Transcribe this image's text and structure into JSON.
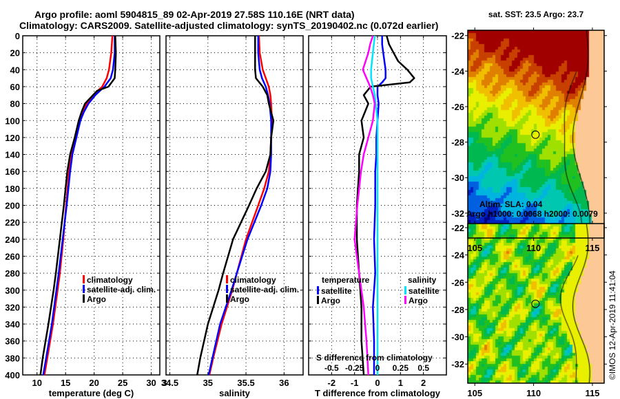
{
  "title_line1": "Argo profile: aoml 5904815_89 02-Apr-2019 27.58S 110.16E (NRT data)",
  "title_line2": "Climatology: CARS2009. Satellite-adjusted climatology: synTS_20190402.nc (0.072d earlier)",
  "colors": {
    "climatology": "#ff0000",
    "satellite": "#0000ff",
    "argo": "#000000",
    "salinity_satellite": "#00e5ff",
    "salinity_argo": "#ff00ff",
    "land": "#fcc896"
  },
  "chart_data": [
    {
      "type": "line",
      "name": "temperature-profile",
      "xlabel": "temperature (deg C)",
      "ylabel": "",
      "xlim": [
        7.5,
        31.5
      ],
      "ylim": [
        400,
        0
      ],
      "xticks": [
        10,
        15,
        20,
        25,
        30
      ],
      "yticks": [
        0,
        20,
        40,
        60,
        80,
        100,
        120,
        140,
        160,
        180,
        200,
        220,
        240,
        260,
        280,
        300,
        320,
        340,
        360,
        380,
        400
      ],
      "grid": true,
      "legend": [
        "climatology",
        "satellite-adj. clim.",
        "Argo"
      ],
      "legend_position": "center-right",
      "depth": [
        0,
        20,
        40,
        50,
        60,
        65,
        70,
        80,
        90,
        100,
        120,
        140,
        160,
        200,
        240,
        280,
        300,
        340,
        380,
        400
      ],
      "series": [
        {
          "name": "climatology",
          "values": [
            23.2,
            23.0,
            22.6,
            22.2,
            21.4,
            20.6,
            19.8,
            18.7,
            18.0,
            17.5,
            16.8,
            16.0,
            15.6,
            15.1,
            14.6,
            14.0,
            13.6,
            12.8,
            11.8,
            11.3
          ]
        },
        {
          "name": "satellite-adj. clim.",
          "values": [
            23.6,
            23.6,
            23.3,
            22.9,
            21.8,
            21.0,
            20.2,
            19.0,
            18.2,
            17.6,
            16.9,
            16.2,
            15.8,
            15.2,
            14.5,
            13.8,
            13.4,
            12.6,
            11.6,
            11.1
          ]
        },
        {
          "name": "Argo",
          "values": [
            23.7,
            23.8,
            23.7,
            23.6,
            22.5,
            20.5,
            19.8,
            18.4,
            17.8,
            17.3,
            16.6,
            15.8,
            15.3,
            14.7,
            14.0,
            13.3,
            12.9,
            12.0,
            11.0,
            10.6
          ]
        }
      ]
    },
    {
      "type": "line",
      "name": "salinity-profile",
      "xlabel": "salinity",
      "ylabel": "",
      "xlim": [
        34.45,
        36.25
      ],
      "ylim": [
        400,
        0
      ],
      "xticks": [
        34.5,
        35,
        35.5,
        36
      ],
      "grid": true,
      "legend": [
        "climatology",
        "satellite-adj. clim.",
        "Argo"
      ],
      "legend_position": "center-right",
      "depth": [
        0,
        20,
        40,
        50,
        60,
        70,
        80,
        100,
        120,
        140,
        160,
        180,
        200,
        240,
        280,
        300,
        340,
        380,
        400
      ],
      "series": [
        {
          "name": "climatology",
          "values": [
            35.67,
            35.68,
            35.72,
            35.76,
            35.8,
            35.82,
            35.83,
            35.84,
            35.83,
            35.82,
            35.8,
            35.74,
            35.66,
            35.5,
            35.38,
            35.32,
            35.18,
            35.07,
            35.02
          ]
        },
        {
          "name": "satellite-adj. clim.",
          "values": [
            35.66,
            35.66,
            35.68,
            35.71,
            35.76,
            35.79,
            35.81,
            35.83,
            35.83,
            35.83,
            35.82,
            35.78,
            35.7,
            35.52,
            35.38,
            35.31,
            35.16,
            35.06,
            35.01
          ]
        },
        {
          "name": "Argo",
          "values": [
            35.62,
            35.62,
            35.62,
            35.63,
            35.72,
            35.78,
            35.8,
            35.86,
            35.83,
            35.82,
            35.76,
            35.64,
            35.54,
            35.33,
            35.2,
            35.14,
            35.0,
            34.9,
            34.86
          ]
        }
      ]
    },
    {
      "type": "line",
      "name": "difference-from-climatology",
      "xlabel": "T difference from climatology",
      "x2label": "S difference from climatology",
      "xlim": [
        -3,
        3
      ],
      "x2lim": [
        -0.75,
        0.75
      ],
      "ylim": [
        400,
        0
      ],
      "xticks": [
        -2,
        -1,
        0,
        1,
        2
      ],
      "x2ticks": [
        -0.5,
        -0.25,
        0,
        0.25,
        0.5
      ],
      "grid": true,
      "legend_temperature_title": "temperature",
      "legend_salinity_title": "salinity",
      "legend": [
        "satellite",
        "Argo",
        "satellite",
        "Argo"
      ],
      "depth": [
        0,
        10,
        20,
        30,
        40,
        50,
        55,
        60,
        70,
        80,
        100,
        120,
        140,
        160,
        200,
        240,
        280,
        320,
        360,
        400
      ],
      "series": [
        {
          "name": "temperature satellite",
          "axis": "T",
          "values": [
            0.2,
            0.2,
            0.25,
            0.3,
            0.35,
            0.35,
            0.2,
            0.0,
            0.0,
            0.05,
            0.0,
            -0.05,
            -0.05,
            -0.1,
            -0.1,
            -0.15,
            -0.1,
            -0.2,
            -0.15,
            -0.15
          ]
        },
        {
          "name": "temperature Argo",
          "axis": "T",
          "values": [
            0.4,
            0.5,
            0.7,
            0.9,
            1.3,
            1.6,
            1.4,
            -0.3,
            -0.6,
            -0.4,
            -0.7,
            -0.6,
            -0.8,
            -0.8,
            -0.9,
            -0.9,
            -0.8,
            -0.7,
            -0.7,
            -0.6
          ]
        },
        {
          "name": "salinity satellite",
          "axis": "S",
          "values": [
            -0.03,
            -0.04,
            -0.05,
            -0.06,
            -0.07,
            -0.07,
            -0.06,
            -0.05,
            -0.03,
            -0.02,
            0.0,
            0.0,
            0.0,
            0.0,
            0.0,
            0.0,
            0.0,
            0.0,
            0.0,
            0.0
          ]
        },
        {
          "name": "salinity Argo",
          "axis": "S",
          "values": [
            -0.05,
            -0.08,
            -0.1,
            -0.13,
            -0.16,
            -0.12,
            -0.1,
            -0.08,
            -0.05,
            -0.03,
            -0.05,
            -0.1,
            -0.15,
            -0.18,
            -0.22,
            -0.25,
            -0.2,
            -0.15,
            -0.12,
            -0.1
          ]
        }
      ]
    }
  ],
  "maps": [
    {
      "name": "sst-map",
      "title": "sat. SST: 23.5 Argo: 23.7",
      "xticks": [
        105,
        110,
        115
      ],
      "yticks": [
        -22,
        -24,
        -26,
        -28,
        -30,
        -32
      ],
      "float_position": [
        110.16,
        -27.58
      ]
    },
    {
      "name": "sla-map",
      "title_line1": "Altim. SLA: 0.04",
      "title_line2": "Argo h1000: 0.0068 h2000: 0.0079",
      "xticks": [
        105,
        110,
        115
      ],
      "yticks": [
        -22,
        -24,
        -26,
        -28,
        -30,
        -32
      ],
      "float_position": [
        110.16,
        -27.58
      ]
    }
  ],
  "credit": "©IMOS 12-Apr-2019 11:41:04"
}
